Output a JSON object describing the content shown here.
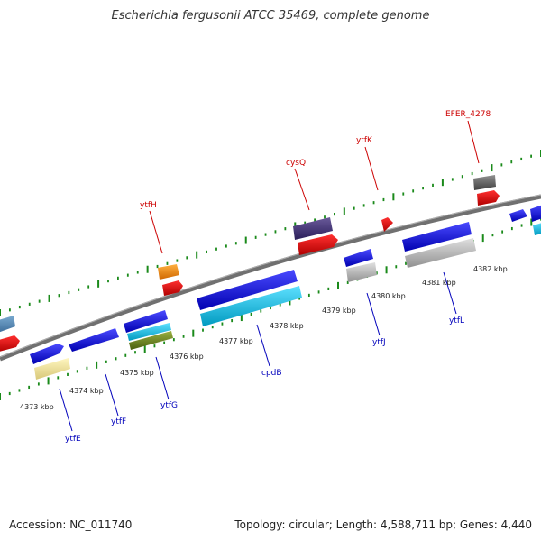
{
  "title": "Escherichia fergusonii ATCC 35469, complete genome",
  "footer": {
    "accession": "Accession: NC_011740",
    "summary": "Topology: circular; Length: 4,588,711 bp; Genes: 4,440"
  },
  "kbp_labels": [
    "4373 kbp",
    "4374 kbp",
    "4375 kbp",
    "4376 kbp",
    "4377 kbp",
    "4378 kbp",
    "4379 kbp",
    "4380 kbp",
    "4381 kbp",
    "4382 kbp"
  ],
  "top_gene_labels": [
    "ytfH",
    "cysQ",
    "ytfK",
    "EFER_4278"
  ],
  "bottom_gene_labels": [
    "ytfE",
    "ytfF",
    "ytfG",
    "cpdB",
    "ytfJ",
    "ytfL"
  ],
  "colors": {
    "backbone": "#808080",
    "tick": "#1a8a1a",
    "top_label": "#cc0000",
    "bottom_label": "#0000bb"
  }
}
